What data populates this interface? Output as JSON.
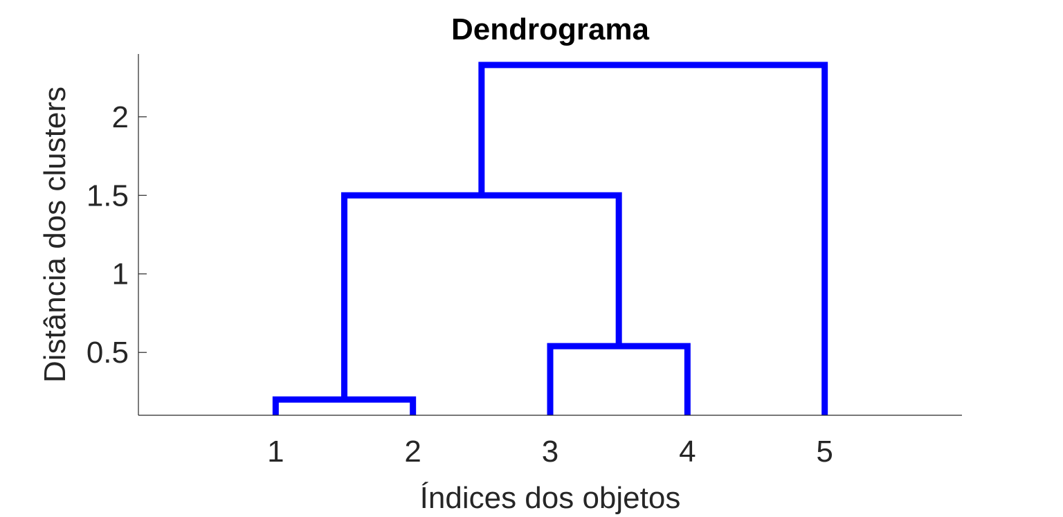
{
  "chart_data": {
    "type": "dendrogram",
    "title": "Dendrograma",
    "xlabel": "Índices dos objetos",
    "ylabel": "Distância dos clusters",
    "leaves": [
      "1",
      "2",
      "3",
      "4",
      "5"
    ],
    "yticks": [
      "0.5",
      "1",
      "1.5",
      "2"
    ],
    "ytick_values": [
      0.5,
      1,
      1.5,
      2
    ],
    "xlim": [
      0,
      6
    ],
    "ylim": [
      0.1,
      2.4
    ],
    "line_color": "#0000ff",
    "axis_color": "#262626",
    "grid": false,
    "box": false,
    "links": [
      {
        "left_x": 1,
        "left_y": 0.1,
        "right_x": 2,
        "right_y": 0.1,
        "height": 0.2
      },
      {
        "left_x": 3,
        "left_y": 0.1,
        "right_x": 4,
        "right_y": 0.1,
        "height": 0.54
      },
      {
        "left_x": 1.5,
        "left_y": 0.2,
        "right_x": 3.5,
        "right_y": 0.54,
        "height": 1.5
      },
      {
        "left_x": 2.5,
        "left_y": 1.5,
        "right_x": 5,
        "right_y": 0.1,
        "height": 2.33
      }
    ]
  }
}
